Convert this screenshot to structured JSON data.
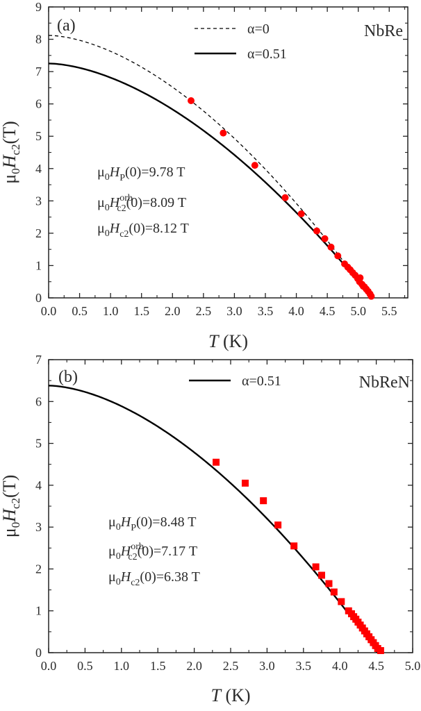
{
  "chart_data": [
    {
      "type": "scatter",
      "panel_label": "(a)",
      "sample": "NbRe",
      "xlabel": {
        "var": "T",
        "unit": "(K)"
      },
      "ylabel": {
        "prefix": "μ",
        "sub0": "0",
        "var": "H",
        "sub": "c2",
        "unit": "(T)"
      },
      "xlim": [
        0,
        5.8
      ],
      "ylim": [
        0,
        9
      ],
      "xticks": [
        0.0,
        0.5,
        1.0,
        1.5,
        2.0,
        2.5,
        3.0,
        3.5,
        4.0,
        4.5,
        5.0,
        5.5
      ],
      "xtick_labels": [
        "0.0",
        "0.5",
        "1.0",
        "1.5",
        "2.0",
        "2.5",
        "3.0",
        "3.5",
        "4.0",
        "4.5",
        "5.0",
        "5.5"
      ],
      "yticks": [
        0,
        1,
        2,
        3,
        4,
        5,
        6,
        7,
        8,
        9
      ],
      "ytick_labels": [
        "0",
        "1",
        "2",
        "3",
        "4",
        "5",
        "6",
        "7",
        "8",
        "9"
      ],
      "marker": "circle",
      "marker_color": "#ff0000",
      "series": [
        {
          "name": "data",
          "points": [
            [
              2.3,
              6.1
            ],
            [
              2.82,
              5.1
            ],
            [
              3.33,
              4.1
            ],
            [
              3.82,
              3.1
            ],
            [
              4.08,
              2.6
            ],
            [
              4.33,
              2.07
            ],
            [
              4.46,
              1.83
            ],
            [
              4.56,
              1.57
            ],
            [
              4.67,
              1.3
            ],
            [
              4.78,
              1.05
            ],
            [
              4.83,
              0.95
            ],
            [
              4.87,
              0.87
            ],
            [
              4.91,
              0.78
            ],
            [
              4.95,
              0.7
            ],
            [
              4.99,
              0.6
            ],
            [
              5.02,
              0.5
            ],
            [
              5.06,
              0.42
            ],
            [
              5.1,
              0.34
            ],
            [
              5.13,
              0.27
            ],
            [
              5.16,
              0.2
            ],
            [
              5.19,
              0.12
            ],
            [
              5.21,
              0.05
            ],
            [
              5.03,
              0.62
            ],
            [
              5.08,
              0.36
            ]
          ]
        },
        {
          "name": "α=0",
          "style": "dashed",
          "Tc": 5.2,
          "h0": 8.12
        },
        {
          "name": "α=0.51",
          "style": "solid",
          "Tc": 5.22,
          "h0": 7.25
        }
      ],
      "legend": [
        "α=0",
        "α=0.51"
      ],
      "annotations": [
        {
          "pre": "μ",
          "s0": "0",
          "var": "H",
          "sub": "P",
          "post": "(0)=9.78 T"
        },
        {
          "pre": "μ",
          "s0": "0",
          "var": "H",
          "sub": "c2",
          "sup": "orb",
          "post": "(0)=8.09 T"
        },
        {
          "pre": "μ",
          "s0": "0",
          "var": "H",
          "sub": "c2",
          "post": "(0)=8.12 T"
        }
      ]
    },
    {
      "type": "scatter",
      "panel_label": "(b)",
      "sample": "NbReN",
      "xlabel": {
        "var": "T",
        "unit": "(K)"
      },
      "ylabel": {
        "prefix": "μ",
        "sub0": "0",
        "var": "H",
        "sub": "c2",
        "unit": "(T)"
      },
      "xlim": [
        0,
        5
      ],
      "ylim": [
        0,
        7
      ],
      "xticks": [
        0.0,
        0.5,
        1.0,
        1.5,
        2.0,
        2.5,
        3.0,
        3.5,
        4.0,
        4.5,
        5.0
      ],
      "xtick_labels": [
        "0.0",
        "0.5",
        "1.0",
        "1.5",
        "2.0",
        "2.5",
        "3.0",
        "3.5",
        "4.0",
        "4.5",
        "5.0"
      ],
      "yticks": [
        0,
        1,
        2,
        3,
        4,
        5,
        6,
        7
      ],
      "ytick_labels": [
        "0",
        "1",
        "2",
        "3",
        "4",
        "5",
        "6",
        "7"
      ],
      "marker": "square",
      "marker_color": "#ff0000",
      "series": [
        {
          "name": "data",
          "points": [
            [
              2.3,
              4.55
            ],
            [
              2.7,
              4.05
            ],
            [
              2.95,
              3.63
            ],
            [
              3.15,
              3.05
            ],
            [
              3.37,
              2.55
            ],
            [
              3.67,
              2.05
            ],
            [
              3.75,
              1.85
            ],
            [
              3.85,
              1.65
            ],
            [
              3.92,
              1.45
            ],
            [
              4.02,
              1.22
            ],
            [
              4.12,
              1.0
            ],
            [
              4.16,
              0.93
            ],
            [
              4.19,
              0.86
            ],
            [
              4.22,
              0.8
            ],
            [
              4.25,
              0.73
            ],
            [
              4.28,
              0.66
            ],
            [
              4.31,
              0.59
            ],
            [
              4.34,
              0.52
            ],
            [
              4.37,
              0.45
            ],
            [
              4.4,
              0.38
            ],
            [
              4.43,
              0.31
            ],
            [
              4.46,
              0.24
            ],
            [
              4.49,
              0.17
            ],
            [
              4.52,
              0.1
            ],
            [
              4.56,
              0.05
            ]
          ]
        },
        {
          "name": "α=0.51",
          "style": "solid",
          "Tc": 4.52,
          "h0": 6.38
        }
      ],
      "legend": [
        "α=0.51"
      ],
      "annotations": [
        {
          "pre": "μ",
          "s0": "0",
          "var": "H",
          "sub": "P",
          "post": "(0)=8.48 T"
        },
        {
          "pre": "μ",
          "s0": "0",
          "var": "H",
          "sub": "c2",
          "sup": "orb",
          "post": "(0)=7.17 T"
        },
        {
          "pre": "μ",
          "s0": "0",
          "var": "H",
          "sub": "c2",
          "post": "(0)=6.38 T"
        }
      ]
    }
  ]
}
